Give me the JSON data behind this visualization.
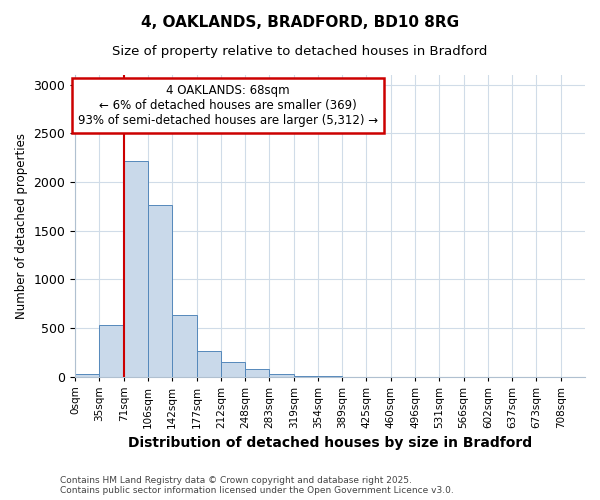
{
  "title1": "4, OAKLANDS, BRADFORD, BD10 8RG",
  "title2": "Size of property relative to detached houses in Bradford",
  "xlabel": "Distribution of detached houses by size in Bradford",
  "ylabel": "Number of detached properties",
  "bar_labels": [
    "0sqm",
    "35sqm",
    "71sqm",
    "106sqm",
    "142sqm",
    "177sqm",
    "212sqm",
    "248sqm",
    "283sqm",
    "319sqm",
    "354sqm",
    "389sqm",
    "425sqm",
    "460sqm",
    "496sqm",
    "531sqm",
    "566sqm",
    "602sqm",
    "637sqm",
    "673sqm",
    "708sqm"
  ],
  "bar_values": [
    25,
    530,
    2220,
    1760,
    630,
    260,
    150,
    80,
    30,
    5,
    3,
    0,
    0,
    0,
    0,
    0,
    0,
    0,
    0,
    0,
    0
  ],
  "bar_color": "#c9d9ea",
  "bar_edgecolor": "#5588bb",
  "property_line_color": "#cc0000",
  "annotation_text": "4 OAKLANDS: 68sqm\n← 6% of detached houses are smaller (369)\n93% of semi-detached houses are larger (5,312) →",
  "annotation_box_color": "#cc0000",
  "ylim": [
    0,
    3100
  ],
  "yticks": [
    0,
    500,
    1000,
    1500,
    2000,
    2500,
    3000
  ],
  "footer": "Contains HM Land Registry data © Crown copyright and database right 2025.\nContains public sector information licensed under the Open Government Licence v3.0.",
  "bg_color": "#ffffff",
  "plot_bg_color": "#ffffff",
  "grid_color": "#d0dce8"
}
